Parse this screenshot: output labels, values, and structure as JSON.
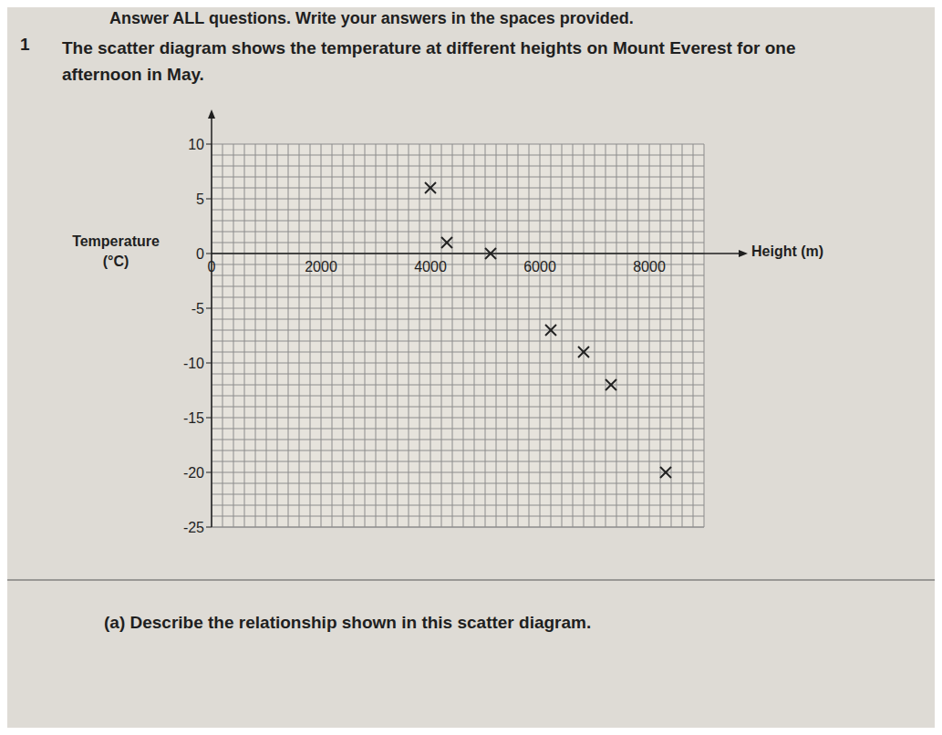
{
  "header": "Answer ALL questions. Write your answers in the spaces provided.",
  "question": {
    "number": "1",
    "text": "The scatter diagram shows the temperature at different heights on Mount Everest for one afternoon in May."
  },
  "part_a": "(a) Describe the relationship shown in this scatter diagram.",
  "chart_data": {
    "type": "scatter",
    "x_label": "Height (m)",
    "y_label": "Temperature (°C)",
    "x": [
      4000,
      4300,
      5100,
      6200,
      6800,
      7300,
      8300
    ],
    "values": [
      6,
      1,
      0,
      -7,
      -9,
      -12,
      -20
    ],
    "xlim": [
      0,
      9000
    ],
    "ylim": [
      -25,
      10
    ],
    "xticks": [
      0,
      2000,
      4000,
      6000,
      8000
    ],
    "yticks": [
      -25,
      -20,
      -15,
      -10,
      -5,
      0,
      5,
      10
    ],
    "grid": true,
    "marker": "x",
    "color": "#222222"
  }
}
